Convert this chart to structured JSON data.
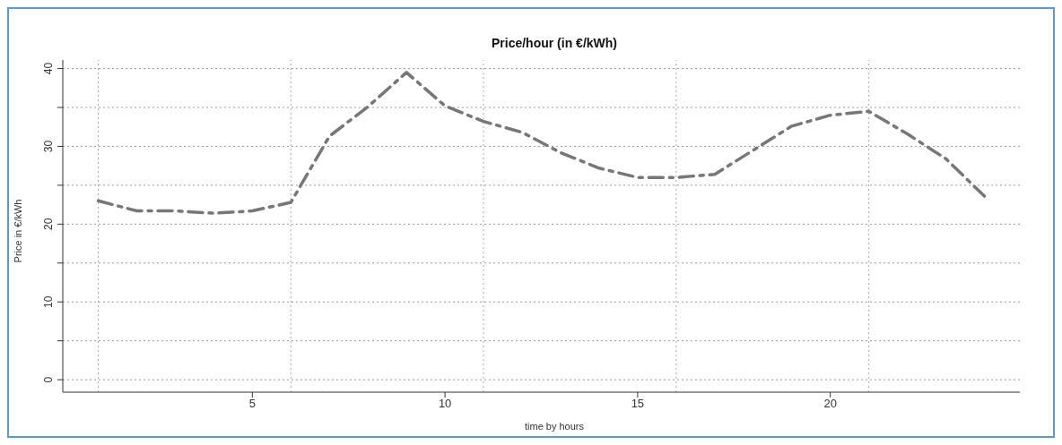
{
  "chart_data": {
    "type": "line",
    "title": "Price/hour (in €/kWh)",
    "xlabel": "time by hours",
    "ylabel": "Price in €/kWh",
    "x": [
      1,
      2,
      3,
      4,
      5,
      6,
      7,
      8,
      9,
      10,
      11,
      12,
      13,
      14,
      15,
      16,
      17,
      18,
      19,
      20,
      21,
      22,
      23,
      24
    ],
    "series": [
      {
        "color": "#777777",
        "values": [
          23,
          21.7,
          21.7,
          21.4,
          21.7,
          22.8,
          31.3,
          35.1,
          39.5,
          35.2,
          33.2,
          31.8,
          29.2,
          27.2,
          26,
          26,
          26.4,
          29.5,
          32.6,
          34,
          34.5,
          31.6,
          28.4,
          23.6
        ]
      }
    ],
    "xlim": [
      0.08,
      24.92
    ],
    "xticks": [
      5,
      10,
      15,
      20
    ],
    "ylim": [
      -1.6,
      41.1
    ],
    "yticks": [
      0,
      {
        "value": 5,
        "label": null
      },
      10,
      {
        "value": 15,
        "label": null
      },
      20,
      {
        "value": 25,
        "label": null
      },
      30,
      {
        "value": 35,
        "label": null
      },
      40
    ],
    "grid": "y",
    "line_style": "dashed",
    "marker": "none",
    "ref_lines": [
      {
        "axis": "x",
        "value": 1,
        "color": "#aaaaaa",
        "line_style": "dotted"
      },
      {
        "axis": "x",
        "value": 6,
        "color": "#aaaaaa",
        "line_style": "dotted"
      },
      {
        "axis": "x",
        "value": 11,
        "color": "#aaaaaa",
        "line_style": "dotted"
      },
      {
        "axis": "x",
        "value": 16,
        "color": "#aaaaaa",
        "line_style": "dotted"
      },
      {
        "axis": "x",
        "value": 21,
        "color": "#aaaaaa",
        "line_style": "dotted"
      }
    ]
  }
}
